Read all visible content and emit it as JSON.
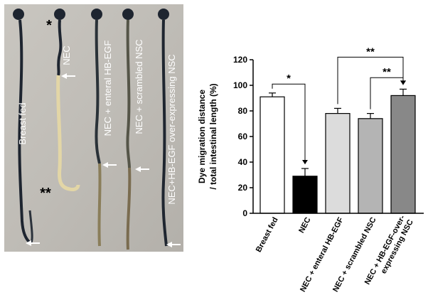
{
  "photo": {
    "lanes": [
      {
        "label": "Breast fed",
        "color": "#222a33"
      },
      {
        "label": "NEC",
        "color": "#e3d6a6"
      },
      {
        "label": "NEC + enteral HB-EGF",
        "color": "#2a3238"
      },
      {
        "label": "NEC + scrambled NSC",
        "color": "#77715a"
      },
      {
        "label": "NEC+HB-EGF over-expressing NSC",
        "color": "#1f2630"
      }
    ],
    "mark_single": "*",
    "mark_double": "**"
  },
  "chart_data": {
    "type": "bar",
    "categories": [
      "Breast fed",
      "NEC",
      "NEC + enteral HB-EGF",
      "NEC + scrambled NSC",
      "NEC + HB-EGF-over-expressing NSC"
    ],
    "tick_lines": [
      [
        "Breast fed"
      ],
      [
        "NEC"
      ],
      [
        "NEC + enteral HB-EGF"
      ],
      [
        "NEC + scrambled NSC"
      ],
      [
        "NEC + HB-EGF-over-",
        "expressing NSC"
      ]
    ],
    "values": [
      91,
      29,
      78,
      74,
      92
    ],
    "errors": [
      3,
      6,
      4,
      4,
      5
    ],
    "bar_colors": [
      "#ffffff",
      "#000000",
      "#dcdcdc",
      "#b4b4b4",
      "#888888"
    ],
    "ylabel_lines": [
      "Dye migration distance",
      "/ total intestinal length (%)"
    ],
    "ylim": [
      0,
      120
    ],
    "yticks": [
      0,
      20,
      40,
      60,
      80,
      100,
      120
    ],
    "significance": [
      {
        "from": 0,
        "to": 1,
        "label": "*"
      },
      {
        "from": 2,
        "to": 4,
        "label": "**"
      },
      {
        "from": 3,
        "to": 4,
        "label": "**"
      }
    ]
  }
}
